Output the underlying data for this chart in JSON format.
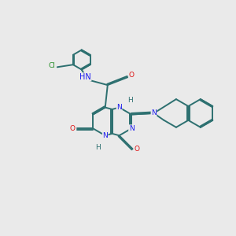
{
  "bg_color": "#eaeaea",
  "bond_color": "#2d7070",
  "n_color": "#1a1aee",
  "o_color": "#dd1111",
  "cl_color": "#228B22",
  "lw": 1.4,
  "xlim": [
    0,
    10
  ],
  "ylim": [
    0,
    10
  ]
}
